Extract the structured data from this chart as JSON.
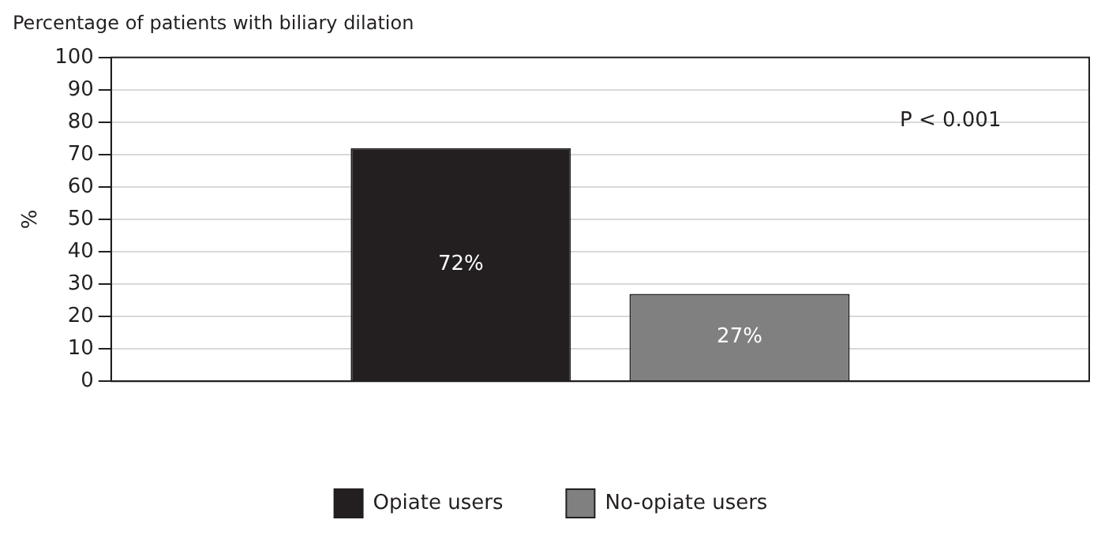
{
  "chart_data": {
    "type": "bar",
    "title": "Percentage of patients with biliary dilation",
    "ylabel": "%",
    "categories": [
      null
    ],
    "series": [
      {
        "name": "Opiate users",
        "color": "#231f20",
        "values": [
          72
        ],
        "value_labels": [
          "72%"
        ]
      },
      {
        "name": "No-opiate users",
        "color": "#808080",
        "values": [
          27
        ],
        "value_labels": [
          "27%"
        ]
      }
    ],
    "ylim": [
      0,
      100
    ],
    "yticks": [
      0,
      10,
      20,
      30,
      40,
      50,
      60,
      70,
      80,
      90,
      100
    ],
    "grid": "y",
    "legend": "bottom",
    "annotations": [
      "P < 0.001"
    ]
  }
}
